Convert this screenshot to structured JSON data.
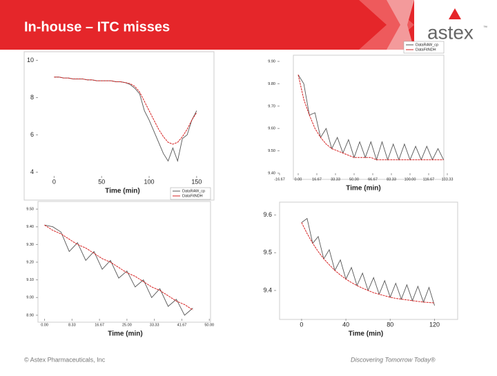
{
  "header": {
    "title": "In-house – ITC misses",
    "logo": "astex",
    "logo_mark": "™"
  },
  "footer": {
    "copyright": "© Astex Pharmaceuticals, Inc",
    "tagline": "Discovering Tomorrow Today®"
  },
  "chart_data": [
    {
      "type": "line",
      "x_label": "Time (min)",
      "x": [
        0,
        5,
        10,
        15,
        20,
        25,
        30,
        35,
        40,
        45,
        50,
        55,
        60,
        65,
        70,
        75,
        80,
        85,
        90,
        95,
        100,
        105,
        110,
        115,
        120,
        125,
        130,
        135,
        140,
        145,
        150
      ],
      "xlim": [
        -17,
        161
      ],
      "ylim": [
        3.8,
        10.2
      ],
      "xticks": [
        0,
        50,
        100,
        150
      ],
      "yticks": [
        4,
        6,
        8,
        10
      ],
      "series": [
        {
          "color": "#555555",
          "values": [
            9.1,
            9.1,
            9.05,
            9.05,
            9.0,
            9.0,
            9.0,
            8.95,
            8.95,
            8.9,
            8.9,
            8.9,
            8.9,
            8.85,
            8.85,
            8.8,
            8.7,
            8.5,
            8.2,
            7.3,
            6.8,
            6.2,
            5.6,
            5.0,
            4.6,
            5.3,
            4.6,
            5.8,
            6.0,
            6.8,
            7.3
          ]
        },
        {
          "color": "#d62020",
          "values": [
            9.1,
            9.1,
            9.05,
            9.05,
            9.0,
            9.0,
            9.0,
            8.95,
            8.95,
            8.9,
            8.9,
            8.9,
            8.9,
            8.85,
            8.85,
            8.8,
            8.75,
            8.6,
            8.3,
            7.8,
            7.3,
            6.8,
            6.3,
            5.9,
            5.6,
            5.5,
            5.6,
            5.9,
            6.3,
            6.8,
            7.2
          ]
        }
      ]
    },
    {
      "type": "line",
      "x_label": "Time (min)",
      "legend": "top-right",
      "x": [
        0,
        5,
        10,
        15,
        20,
        25,
        30,
        35,
        40,
        45,
        50,
        55,
        60,
        65,
        70,
        75,
        80,
        85,
        90,
        95,
        100,
        105,
        110,
        115,
        120,
        125,
        130
      ],
      "xlim": [
        -16.67,
        133.33
      ],
      "ylim": [
        9.4,
        9.9
      ],
      "xticks": [
        {
          "value": -16.67,
          "label": "-16.67"
        },
        {
          "value": 0,
          "label": "0.00"
        },
        16.67,
        33.33,
        {
          "value": 50,
          "label": "50.00"
        },
        66.67,
        83.33,
        {
          "value": 100,
          "label": "100.00"
        },
        116.67,
        133.33
      ],
      "yticks": [
        {
          "value": 9.4,
          "label": "9.40"
        },
        {
          "value": 9.5,
          "label": "9.50"
        },
        {
          "value": 9.6,
          "label": "9.60"
        },
        {
          "value": 9.7,
          "label": "9.70"
        },
        {
          "value": 9.8,
          "label": "9.80"
        },
        {
          "value": 9.9,
          "label": "9.90"
        }
      ],
      "series": [
        {
          "name": "DataRAW_cp",
          "color": "#555555",
          "values": [
            9.84,
            9.8,
            9.66,
            9.67,
            9.56,
            9.6,
            9.51,
            9.56,
            9.49,
            9.55,
            9.47,
            9.54,
            9.47,
            9.54,
            9.46,
            9.54,
            9.46,
            9.53,
            9.46,
            9.53,
            9.46,
            9.52,
            9.46,
            9.52,
            9.46,
            9.51,
            9.46
          ]
        },
        {
          "name": "DataFitNDH",
          "color": "#d62020",
          "values": [
            9.84,
            9.73,
            9.66,
            9.6,
            9.56,
            9.53,
            9.51,
            9.5,
            9.49,
            9.48,
            9.47,
            9.47,
            9.47,
            9.47,
            9.46,
            9.46,
            9.46,
            9.46,
            9.46,
            9.46,
            9.46,
            9.46,
            9.46,
            9.46,
            9.46,
            9.46,
            9.46
          ]
        }
      ]
    },
    {
      "type": "line",
      "x_label": "Time (min)",
      "legend": "top-right",
      "x": [
        0,
        2.5,
        5,
        7.5,
        10,
        12.5,
        15,
        17.5,
        20,
        22.5,
        25,
        27.5,
        30,
        32.5,
        35,
        37.5,
        40,
        42.5,
        45
      ],
      "xlim": [
        -2,
        51
      ],
      "ylim": [
        8.88,
        9.52
      ],
      "xticks": [
        {
          "value": 0,
          "label": "0.00"
        },
        8.33,
        16.67,
        {
          "value": 25,
          "label": "25.00"
        },
        33.33,
        41.67,
        {
          "value": 50,
          "label": "50.00"
        }
      ],
      "yticks": [
        {
          "value": 8.9,
          "label": "8.90"
        },
        {
          "value": 9.0,
          "label": "9.00"
        },
        {
          "value": 9.1,
          "label": "9.10"
        },
        {
          "value": 9.2,
          "label": "9.20"
        },
        {
          "value": 9.3,
          "label": "9.30"
        },
        {
          "value": 9.4,
          "label": "9.40"
        },
        {
          "value": 9.5,
          "label": "9.50"
        }
      ],
      "series": [
        {
          "name": "DataRAW_cp",
          "color": "#555555",
          "values": [
            9.41,
            9.4,
            9.37,
            9.26,
            9.31,
            9.21,
            9.26,
            9.16,
            9.21,
            9.11,
            9.15,
            9.06,
            9.1,
            9.0,
            9.05,
            8.95,
            8.99,
            8.9,
            8.94
          ]
        },
        {
          "name": "DataFitNDH",
          "color": "#d62020",
          "values": [
            9.41,
            9.38,
            9.36,
            9.33,
            9.3,
            9.28,
            9.25,
            9.22,
            9.2,
            9.17,
            9.14,
            9.12,
            9.09,
            9.06,
            9.04,
            9.01,
            8.98,
            8.96,
            8.93
          ]
        }
      ]
    },
    {
      "type": "line",
      "x_label": "Time (min)",
      "x": [
        0,
        5,
        10,
        15,
        20,
        25,
        30,
        35,
        40,
        45,
        50,
        55,
        60,
        65,
        70,
        75,
        80,
        85,
        90,
        95,
        100,
        105,
        110,
        115,
        120
      ],
      "xlim": [
        -23,
        139
      ],
      "ylim": [
        9.325,
        9.625
      ],
      "xticks": [
        0,
        40,
        80,
        120
      ],
      "yticks": [
        9.4,
        9.5,
        9.6
      ],
      "series": [
        {
          "color": "#555555",
          "values": [
            9.58,
            9.591,
            9.525,
            9.543,
            9.484,
            9.508,
            9.453,
            9.481,
            9.43,
            9.461,
            9.413,
            9.446,
            9.4,
            9.434,
            9.39,
            9.426,
            9.382,
            9.419,
            9.377,
            9.415,
            9.373,
            9.411,
            9.369,
            9.408,
            9.36
          ]
        },
        {
          "color": "#d62020",
          "values": [
            9.58,
            9.551,
            9.525,
            9.503,
            9.484,
            9.468,
            9.453,
            9.441,
            9.43,
            9.421,
            9.413,
            9.406,
            9.4,
            9.394,
            9.39,
            9.386,
            9.382,
            9.379,
            9.377,
            9.375,
            9.373,
            9.371,
            9.369,
            9.368,
            9.367
          ]
        }
      ]
    }
  ]
}
